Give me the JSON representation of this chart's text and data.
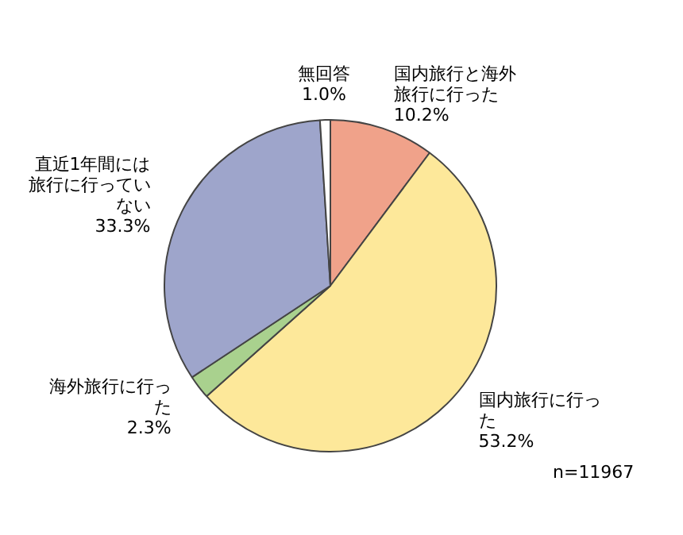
{
  "chart_data": {
    "type": "pie",
    "categories": [
      "国内旅行と海外旅行に行った",
      "国内旅行に行った",
      "海外旅行に行った",
      "直近1年間には旅行に行っていない",
      "無回答"
    ],
    "values": [
      10.2,
      53.2,
      2.3,
      33.3,
      1.0
    ],
    "value_labels": [
      "10.2%",
      "53.2%",
      "2.3%",
      "33.3%",
      "1.0%"
    ],
    "colors": [
      "#f0a28a",
      "#fde89a",
      "#a9d18e",
      "#9ea5cb",
      "#ffffff"
    ],
    "annotations": [
      "n=11967"
    ],
    "legend": false
  }
}
